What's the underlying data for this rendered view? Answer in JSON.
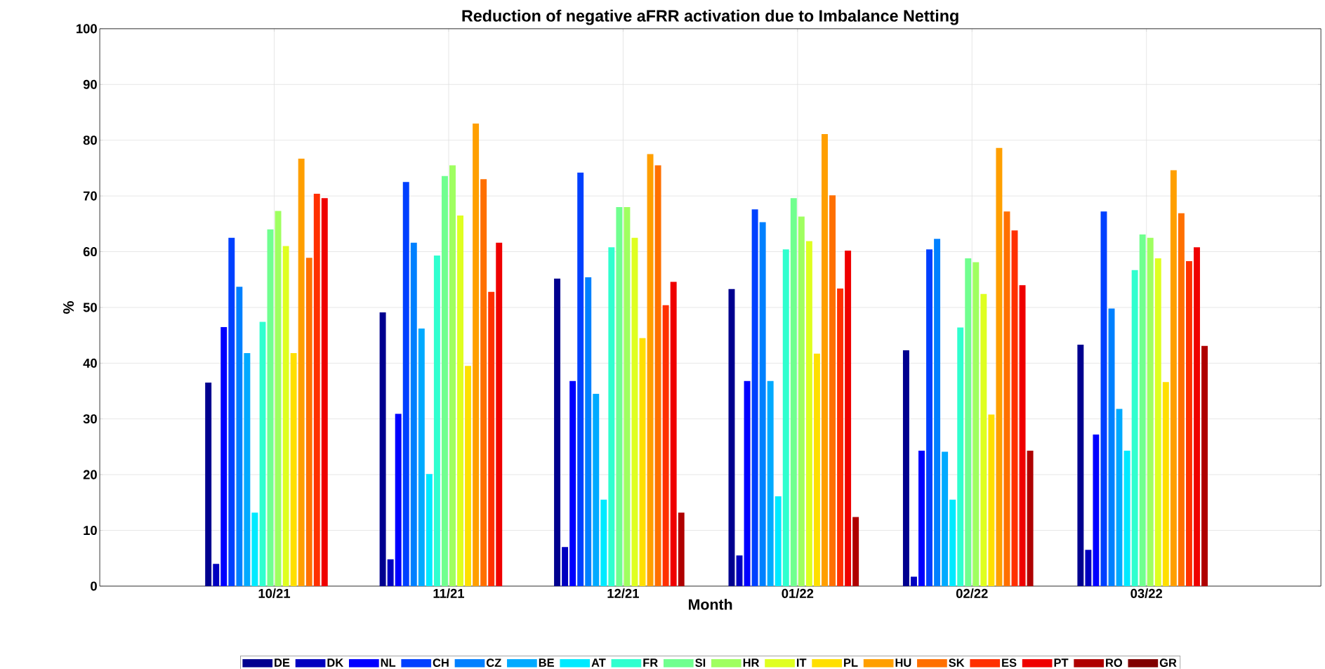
{
  "chart_data": {
    "type": "bar",
    "title": "Reduction of negative aFRR activation due to Imbalance Netting",
    "xlabel": "Month",
    "ylabel": "%",
    "categories": [
      "10/21",
      "11/21",
      "12/21",
      "01/22",
      "02/22",
      "03/22"
    ],
    "series": [
      {
        "name": "DE",
        "color": "#00008f",
        "values": [
          36.5,
          49.1,
          55.2,
          53.3,
          42.3,
          43.3
        ]
      },
      {
        "name": "DK",
        "color": "#0000bf",
        "values": [
          4.0,
          4.8,
          7.0,
          5.5,
          1.7,
          6.5
        ]
      },
      {
        "name": "NL",
        "color": "#0000ff",
        "values": [
          46.5,
          30.9,
          36.8,
          36.8,
          24.3,
          27.2
        ]
      },
      {
        "name": "CH",
        "color": "#0040ff",
        "values": [
          62.5,
          72.5,
          74.2,
          67.6,
          60.4,
          67.2
        ]
      },
      {
        "name": "CZ",
        "color": "#0080ff",
        "values": [
          53.7,
          61.6,
          55.4,
          65.3,
          62.3,
          49.8
        ]
      },
      {
        "name": "BE",
        "color": "#00aaff",
        "values": [
          41.8,
          46.2,
          34.5,
          36.8,
          24.1,
          31.8
        ]
      },
      {
        "name": "AT",
        "color": "#00eaff",
        "values": [
          13.2,
          20.1,
          15.5,
          16.1,
          15.5,
          24.3
        ]
      },
      {
        "name": "FR",
        "color": "#30ffcf",
        "values": [
          47.4,
          59.3,
          60.8,
          60.4,
          46.4,
          56.7
        ]
      },
      {
        "name": "SI",
        "color": "#70ff8f",
        "values": [
          64.0,
          73.6,
          68.0,
          69.6,
          58.8,
          63.1
        ]
      },
      {
        "name": "HR",
        "color": "#9fff60",
        "values": [
          67.3,
          75.5,
          68.0,
          66.3,
          58.1,
          62.5
        ]
      },
      {
        "name": "IT",
        "color": "#dfff20",
        "values": [
          61.0,
          66.5,
          62.5,
          61.9,
          52.4,
          58.8
        ]
      },
      {
        "name": "PL",
        "color": "#ffdf00",
        "values": [
          41.8,
          39.5,
          44.5,
          41.7,
          30.8,
          36.6
        ]
      },
      {
        "name": "HU",
        "color": "#ff9f00",
        "values": [
          76.7,
          83.0,
          77.5,
          81.1,
          78.6,
          74.6
        ]
      },
      {
        "name": "SK",
        "color": "#ff7000",
        "values": [
          58.9,
          73.0,
          75.5,
          70.1,
          67.2,
          66.9
        ]
      },
      {
        "name": "ES",
        "color": "#ff3000",
        "values": [
          70.4,
          52.8,
          50.4,
          53.4,
          63.8,
          58.3
        ]
      },
      {
        "name": "PT",
        "color": "#ef0000",
        "values": [
          69.6,
          61.6,
          54.6,
          60.2,
          54.0,
          60.8
        ]
      },
      {
        "name": "RO",
        "color": "#af0000",
        "values": [
          null,
          null,
          13.2,
          12.4,
          24.3,
          43.1
        ]
      },
      {
        "name": "GR",
        "color": "#800000",
        "values": [
          null,
          null,
          null,
          null,
          null,
          null
        ]
      }
    ],
    "ylim": [
      0,
      100
    ],
    "yticks": [
      0,
      10,
      20,
      30,
      40,
      50,
      60,
      70,
      80,
      90,
      100
    ],
    "grid": true,
    "legend": "bottom"
  }
}
